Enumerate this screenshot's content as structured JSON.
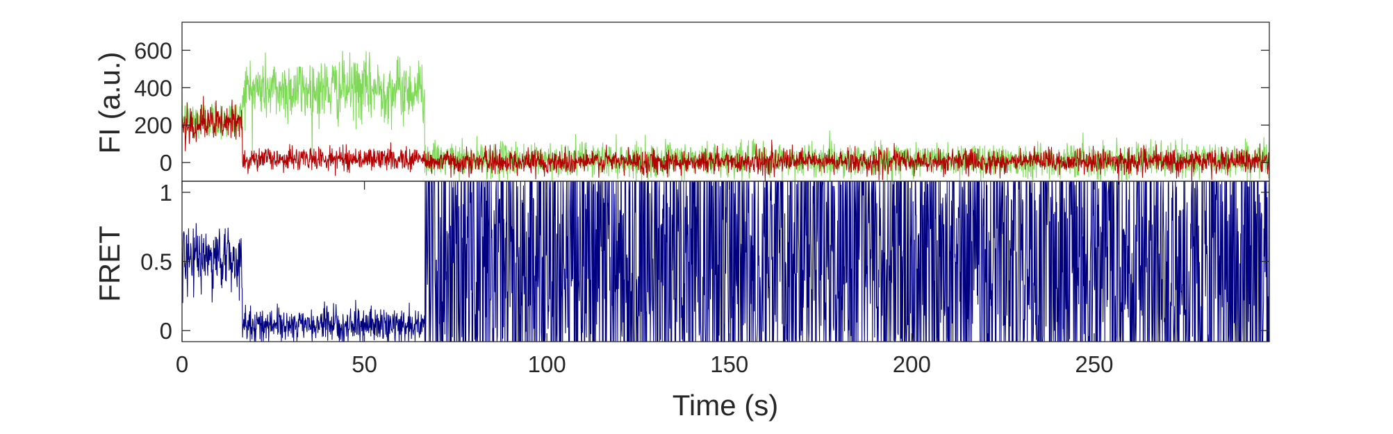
{
  "colors": {
    "donor": "#7ed957",
    "acceptor": "#b30000",
    "fret": "#000080",
    "axes": "#262626"
  },
  "chart_data": [
    {
      "type": "line",
      "ylabel": "FI (a.u.)",
      "xlim": [
        0,
        298
      ],
      "ylim": [
        -100,
        750
      ],
      "yticks": [
        0,
        200,
        400,
        600
      ],
      "grid": false,
      "series": [
        {
          "color": "#7ed957",
          "segments": [
            {
              "t_start": 0,
              "t_end": 16.5,
              "mean": 230,
              "noise": 55
            },
            {
              "t_start": 16.5,
              "t_end": 66.5,
              "mean": 390,
              "noise": 85
            },
            {
              "t_start": 66.5,
              "t_end": 298,
              "mean": 15,
              "noise": 45
            }
          ]
        },
        {
          "color": "#b30000",
          "segments": [
            {
              "t_start": 0,
              "t_end": 16.5,
              "mean": 210,
              "noise": 50
            },
            {
              "t_start": 16.5,
              "t_end": 66.5,
              "mean": 20,
              "noise": 30
            },
            {
              "t_start": 66.5,
              "t_end": 298,
              "mean": 5,
              "noise": 32
            }
          ]
        }
      ]
    },
    {
      "type": "line",
      "ylabel": "FRET",
      "xlabel": "Time (s)",
      "xlim": [
        0,
        298
      ],
      "ylim": [
        -0.08,
        1.08
      ],
      "yticks": [
        0,
        0.5,
        1
      ],
      "xticks": [
        0,
        50,
        100,
        150,
        200,
        250
      ],
      "grid": false,
      "series": [
        {
          "color": "#000080",
          "segments": [
            {
              "t_start": 0,
              "t_end": 16.5,
              "mean": 0.52,
              "noise": 0.12
            },
            {
              "t_start": 16.5,
              "t_end": 66.5,
              "mean": 0.04,
              "noise": 0.06
            },
            {
              "t_start": 66.5,
              "t_end": 298,
              "mean": 0.5,
              "noise": 0.8
            }
          ]
        }
      ]
    }
  ]
}
